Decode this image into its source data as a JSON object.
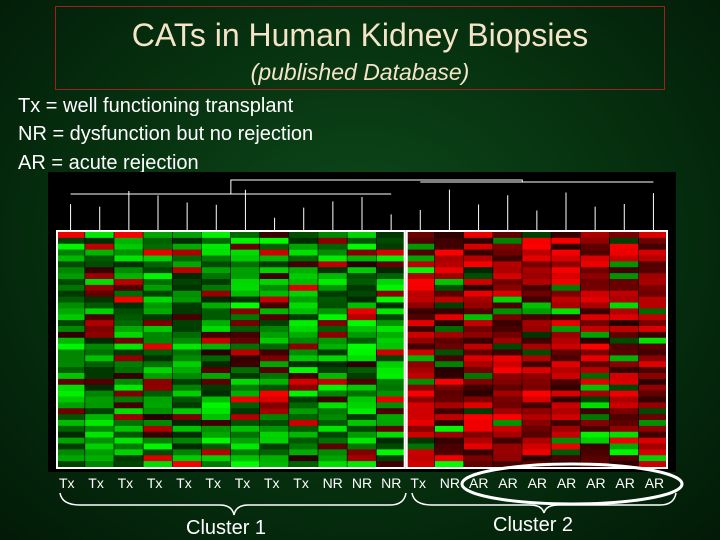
{
  "title": "CATs in Human Kidney Biopsies",
  "subtitle": "(published Database)",
  "legend": [
    "Tx = well functioning transplant",
    "NR = dysfunction but no rejection",
    "AR = acute rejection"
  ],
  "columns": [
    "Tx",
    "Tx",
    "Tx",
    "Tx",
    "Tx",
    "Tx",
    "Tx",
    "Tx",
    "Tx",
    "NR",
    "NR",
    "NR",
    "Tx",
    "NR",
    "AR",
    "AR",
    "AR",
    "AR",
    "AR",
    "AR",
    "AR"
  ],
  "clusters": [
    {
      "label": "Cluster 1"
    },
    {
      "label": "Cluster 2"
    }
  ],
  "colors": {
    "title_text": "#f4e4c8",
    "title_border": "#a02020",
    "background": "#06300f",
    "heat_green": "#00ff00",
    "heat_red": "#ff0000",
    "cluster_box": "#ffffff"
  }
}
